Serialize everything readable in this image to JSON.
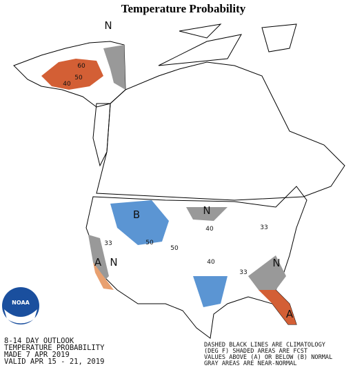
{
  "title": "Temperature Probability",
  "outlook": [
    "8-14 DAY OUTLOOK",
    "TEMPERATURE PROBABILITY",
    "MADE  7 APR 2019",
    "VALID  APR 15 - 21, 2019"
  ],
  "legend": [
    "DASHED BLACK LINES ARE CLIMATOLOGY",
    "(DEG F) SHADED AREAS ARE FCST",
    "VALUES ABOVE (A) OR BELOW (B) NORMAL",
    "GRAY AREAS ARE NEAR-NORMAL"
  ],
  "logo": "NOAA",
  "region_labels": [
    "N",
    "B",
    "N",
    "A",
    "N",
    "N",
    "A"
  ],
  "contour_labels": [
    60,
    50,
    40,
    33,
    50,
    40,
    40,
    33,
    33,
    50
  ]
}
